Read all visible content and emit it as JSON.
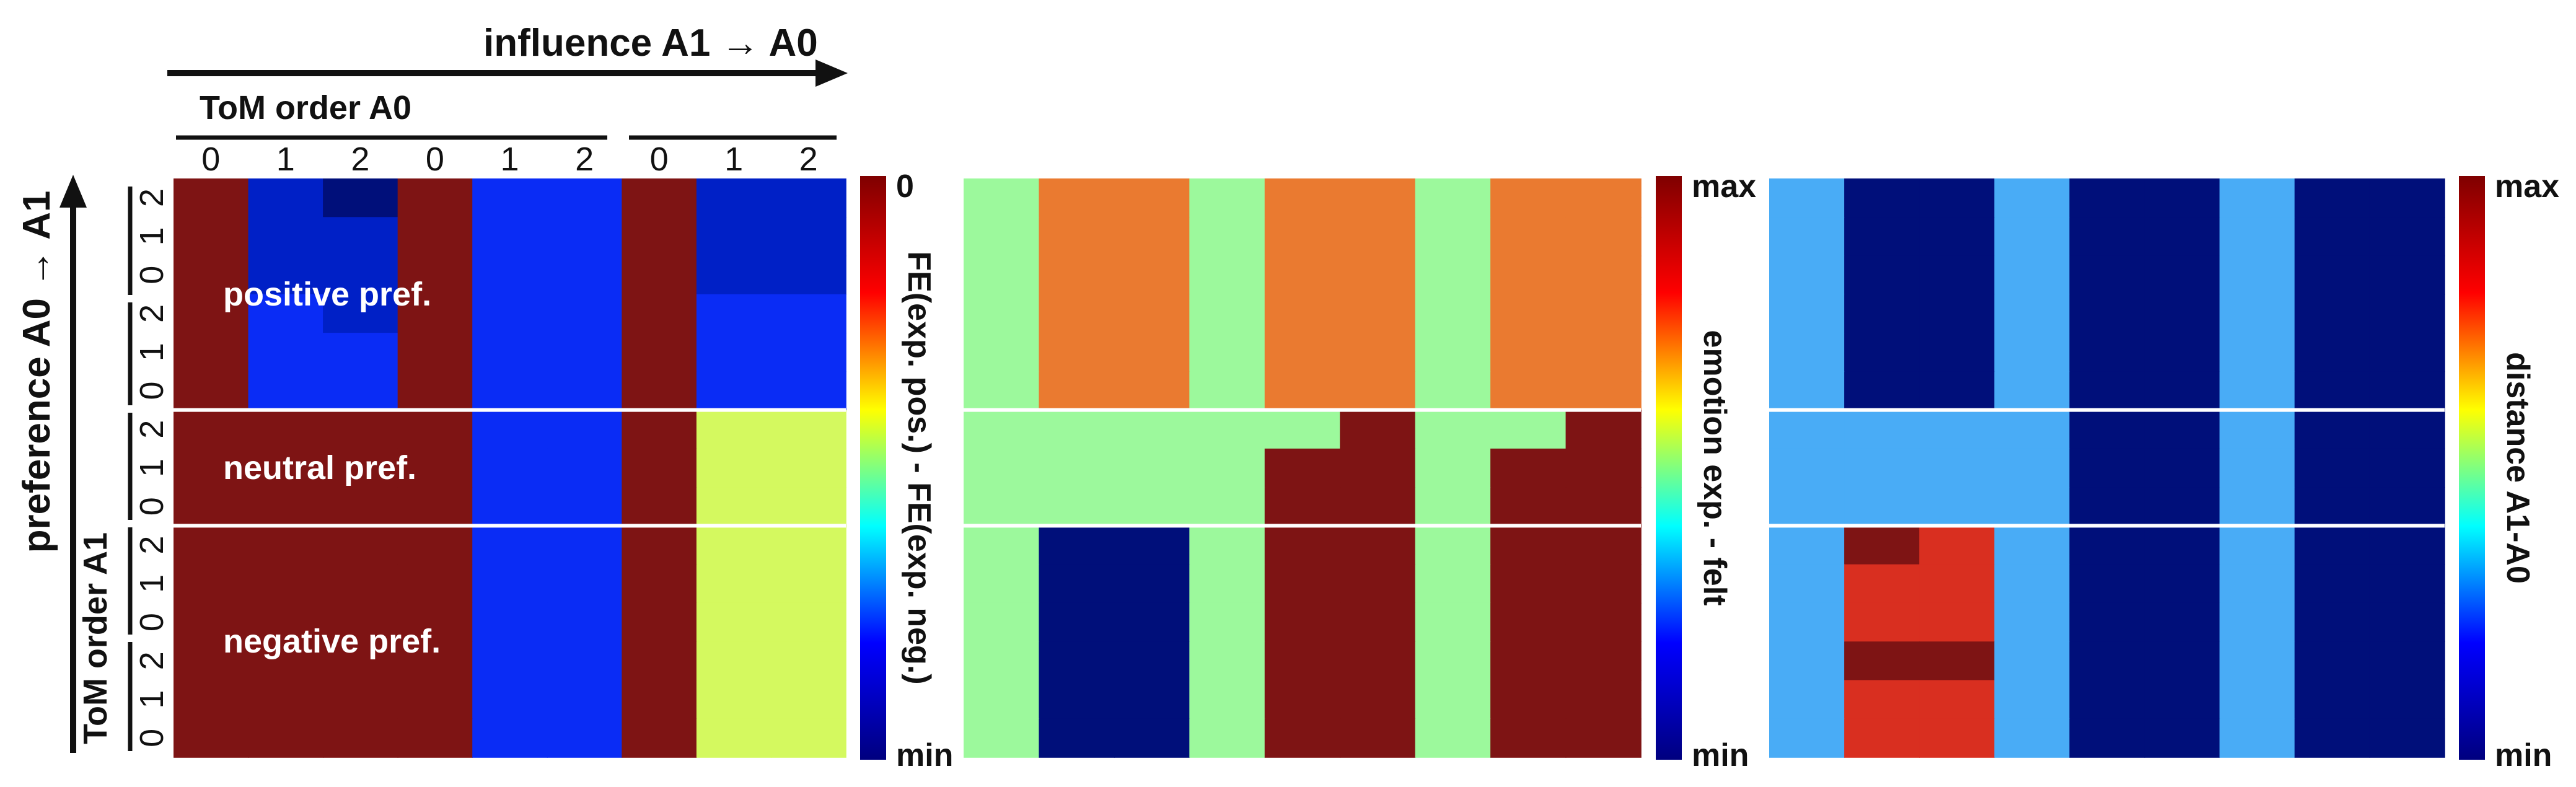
{
  "header": {
    "influence_label": "influence A1 → A0",
    "tom_a0_label": "ToM order A0",
    "tom_a0_ticks": [
      "0",
      "1",
      "2",
      "0",
      "1",
      "2",
      "0",
      "1",
      "2"
    ]
  },
  "side": {
    "preference_label": "preference A0 → A1",
    "tom_a1_label": "ToM order A1",
    "tom_a1_ticks_top_to_bottom": [
      "2",
      "1",
      "0",
      "2",
      "1",
      "0",
      "2",
      "1",
      "0",
      "2",
      "1",
      "0",
      "2",
      "1",
      "0"
    ]
  },
  "region_labels": [
    "positive pref.",
    "neutral pref.",
    "negative pref."
  ],
  "colors": {
    "maroon": "#7e1414",
    "navy": "#000f7a",
    "deep_blue": "#0020c6",
    "blue": "#0a2cf5",
    "light_blue": "#49acf6",
    "mint": "#9cf99c",
    "yellow_green": "#d4f95f",
    "orange": "#ea7a30",
    "red": "#d92f20",
    "separator": "#ffffff"
  },
  "colorbar_stops": [
    "#00007f",
    "#0000ff",
    "#00ffff",
    "#ffff00",
    "#ff0000",
    "#7f0000"
  ],
  "chart_data": [
    {
      "type": "heatmap",
      "panel": "FE difference",
      "colorbar_label": "FE(exp. pos.) - FE(exp. neg.)",
      "colorbar_top": "0",
      "colorbar_bottom": "min",
      "columns_labels": [
        "0",
        "1",
        "2",
        "0",
        "1",
        "2",
        "0",
        "1",
        "2"
      ],
      "row_groups": [
        "positive pref.",
        "neutral pref.",
        "negative pref."
      ],
      "rows": 15,
      "cells": [
        [
          "maroon",
          "deep_blue",
          "navy",
          "maroon",
          "blue",
          "blue",
          "maroon",
          "deep_blue",
          "deep_blue"
        ],
        [
          "maroon",
          "deep_blue",
          "deep_blue",
          "maroon",
          "blue",
          "blue",
          "maroon",
          "deep_blue",
          "deep_blue"
        ],
        [
          "maroon",
          "deep_blue",
          "deep_blue",
          "maroon",
          "blue",
          "blue",
          "maroon",
          "deep_blue",
          "deep_blue"
        ],
        [
          "maroon",
          "blue",
          "deep_blue",
          "maroon",
          "blue",
          "blue",
          "maroon",
          "blue",
          "blue"
        ],
        [
          "maroon",
          "blue",
          "blue",
          "maroon",
          "blue",
          "blue",
          "maroon",
          "blue",
          "blue"
        ],
        [
          "maroon",
          "blue",
          "blue",
          "maroon",
          "blue",
          "blue",
          "maroon",
          "blue",
          "blue"
        ],
        [
          "maroon",
          "maroon",
          "maroon",
          "maroon",
          "blue",
          "blue",
          "maroon",
          "yellow_green",
          "yellow_green"
        ],
        [
          "maroon",
          "maroon",
          "maroon",
          "maroon",
          "blue",
          "blue",
          "maroon",
          "yellow_green",
          "yellow_green"
        ],
        [
          "maroon",
          "maroon",
          "maroon",
          "maroon",
          "blue",
          "blue",
          "maroon",
          "yellow_green",
          "yellow_green"
        ],
        [
          "maroon",
          "maroon",
          "maroon",
          "maroon",
          "blue",
          "blue",
          "maroon",
          "yellow_green",
          "yellow_green"
        ],
        [
          "maroon",
          "maroon",
          "maroon",
          "maroon",
          "blue",
          "blue",
          "maroon",
          "yellow_green",
          "yellow_green"
        ],
        [
          "maroon",
          "maroon",
          "maroon",
          "maroon",
          "blue",
          "blue",
          "maroon",
          "yellow_green",
          "yellow_green"
        ],
        [
          "maroon",
          "maroon",
          "maroon",
          "maroon",
          "blue",
          "blue",
          "maroon",
          "yellow_green",
          "yellow_green"
        ],
        [
          "maroon",
          "maroon",
          "maroon",
          "maroon",
          "blue",
          "blue",
          "maroon",
          "yellow_green",
          "yellow_green"
        ],
        [
          "maroon",
          "maroon",
          "maroon",
          "maroon",
          "blue",
          "blue",
          "maroon",
          "yellow_green",
          "yellow_green"
        ]
      ]
    },
    {
      "type": "heatmap",
      "panel": "emotion",
      "colorbar_label": "emotion exp. - felt",
      "colorbar_top": "max",
      "colorbar_bottom": "min",
      "rows": 15,
      "cells": [
        [
          "mint",
          "orange",
          "orange",
          "mint",
          "orange",
          "orange",
          "mint",
          "orange",
          "orange"
        ],
        [
          "mint",
          "orange",
          "orange",
          "mint",
          "orange",
          "orange",
          "mint",
          "orange",
          "orange"
        ],
        [
          "mint",
          "orange",
          "orange",
          "mint",
          "orange",
          "orange",
          "mint",
          "orange",
          "orange"
        ],
        [
          "mint",
          "orange",
          "orange",
          "mint",
          "orange",
          "orange",
          "mint",
          "orange",
          "orange"
        ],
        [
          "mint",
          "orange",
          "orange",
          "mint",
          "orange",
          "orange",
          "mint",
          "orange",
          "orange"
        ],
        [
          "mint",
          "orange",
          "orange",
          "mint",
          "orange",
          "orange",
          "mint",
          "orange",
          "orange"
        ],
        [
          "mint",
          "mint",
          "mint",
          "mint",
          "mint",
          "maroon",
          "mint",
          "mint",
          "maroon"
        ],
        [
          "mint",
          "mint",
          "mint",
          "mint",
          "maroon",
          "maroon",
          "mint",
          "maroon",
          "maroon"
        ],
        [
          "mint",
          "mint",
          "mint",
          "mint",
          "maroon",
          "maroon",
          "mint",
          "maroon",
          "maroon"
        ],
        [
          "mint",
          "navy",
          "navy",
          "mint",
          "maroon",
          "maroon",
          "mint",
          "maroon",
          "maroon"
        ],
        [
          "mint",
          "navy",
          "navy",
          "mint",
          "maroon",
          "maroon",
          "mint",
          "maroon",
          "maroon"
        ],
        [
          "mint",
          "navy",
          "navy",
          "mint",
          "maroon",
          "maroon",
          "mint",
          "maroon",
          "maroon"
        ],
        [
          "mint",
          "navy",
          "navy",
          "mint",
          "maroon",
          "maroon",
          "mint",
          "maroon",
          "maroon"
        ],
        [
          "mint",
          "navy",
          "navy",
          "mint",
          "maroon",
          "maroon",
          "mint",
          "maroon",
          "maroon"
        ],
        [
          "mint",
          "navy",
          "navy",
          "mint",
          "maroon",
          "maroon",
          "mint",
          "maroon",
          "maroon"
        ]
      ]
    },
    {
      "type": "heatmap",
      "panel": "distance",
      "colorbar_label": "distance A1-A0",
      "colorbar_top": "max",
      "colorbar_bottom": "min",
      "rows": 15,
      "cells": [
        [
          "light_blue",
          "navy",
          "navy",
          "light_blue",
          "navy",
          "navy",
          "light_blue",
          "navy",
          "navy"
        ],
        [
          "light_blue",
          "navy",
          "navy",
          "light_blue",
          "navy",
          "navy",
          "light_blue",
          "navy",
          "navy"
        ],
        [
          "light_blue",
          "navy",
          "navy",
          "light_blue",
          "navy",
          "navy",
          "light_blue",
          "navy",
          "navy"
        ],
        [
          "light_blue",
          "navy",
          "navy",
          "light_blue",
          "navy",
          "navy",
          "light_blue",
          "navy",
          "navy"
        ],
        [
          "light_blue",
          "navy",
          "navy",
          "light_blue",
          "navy",
          "navy",
          "light_blue",
          "navy",
          "navy"
        ],
        [
          "light_blue",
          "navy",
          "navy",
          "light_blue",
          "navy",
          "navy",
          "light_blue",
          "navy",
          "navy"
        ],
        [
          "light_blue",
          "light_blue",
          "light_blue",
          "light_blue",
          "navy",
          "navy",
          "light_blue",
          "navy",
          "navy"
        ],
        [
          "light_blue",
          "light_blue",
          "light_blue",
          "light_blue",
          "navy",
          "navy",
          "light_blue",
          "navy",
          "navy"
        ],
        [
          "light_blue",
          "light_blue",
          "light_blue",
          "light_blue",
          "navy",
          "navy",
          "light_blue",
          "navy",
          "navy"
        ],
        [
          "light_blue",
          "maroon",
          "red",
          "light_blue",
          "navy",
          "navy",
          "light_blue",
          "navy",
          "navy"
        ],
        [
          "light_blue",
          "red",
          "red",
          "light_blue",
          "navy",
          "navy",
          "light_blue",
          "navy",
          "navy"
        ],
        [
          "light_blue",
          "red",
          "red",
          "light_blue",
          "navy",
          "navy",
          "light_blue",
          "navy",
          "navy"
        ],
        [
          "light_blue",
          "maroon",
          "maroon",
          "light_blue",
          "navy",
          "navy",
          "light_blue",
          "navy",
          "navy"
        ],
        [
          "light_blue",
          "red",
          "red",
          "light_blue",
          "navy",
          "navy",
          "light_blue",
          "navy",
          "navy"
        ],
        [
          "light_blue",
          "red",
          "red",
          "light_blue",
          "navy",
          "navy",
          "light_blue",
          "navy",
          "navy"
        ]
      ]
    }
  ]
}
